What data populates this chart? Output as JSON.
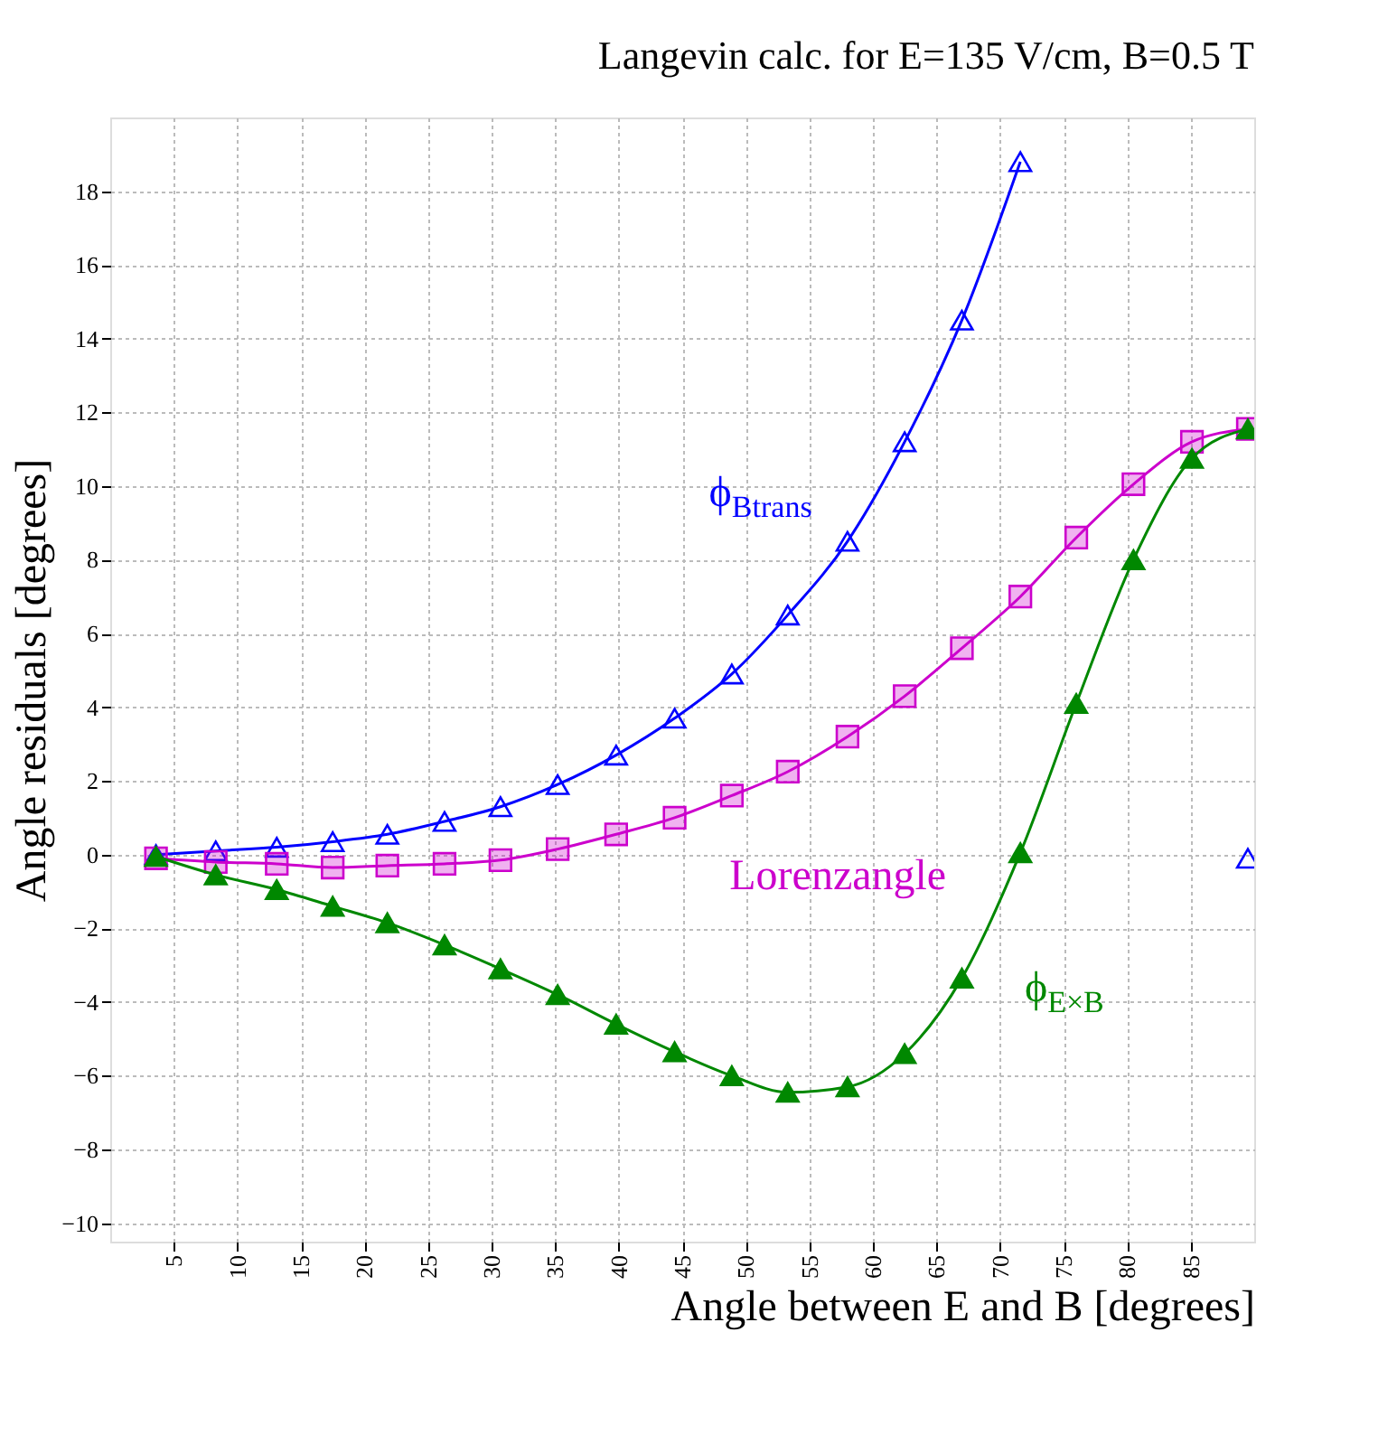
{
  "chart_data": {
    "type": "line",
    "title": "Langevin calc. for E=135 V/cm, B=0.5 T",
    "xlabel": "Angle between E and B [degrees]",
    "ylabel": "Angle residuals [degrees]",
    "x": [
      3.6,
      8.3,
      13.1,
      17.5,
      21.8,
      26.3,
      30.7,
      35.2,
      39.8,
      44.4,
      48.9,
      53.3,
      58.0,
      62.5,
      67.0,
      71.6,
      76.0,
      80.5,
      85.1,
      89.5
    ],
    "series": [
      {
        "name": "ϕ$_{Btrans}$",
        "color": "#0000ff",
        "marker": "triangle",
        "values": [
          0,
          0.1,
          0.2,
          0.35,
          0.55,
          0.9,
          1.3,
          1.9,
          2.7,
          3.7,
          4.9,
          6.5,
          8.5,
          11.2,
          14.5,
          18.8,
          null,
          null,
          null,
          -0.1
        ]
      },
      {
        "name": "Lorenzangle",
        "color": "#cc00cc",
        "marker": "square",
        "values": [
          -0.1,
          -0.2,
          -0.25,
          -0.35,
          -0.3,
          -0.25,
          -0.15,
          0.15,
          0.55,
          1.0,
          1.6,
          2.25,
          3.2,
          4.3,
          5.6,
          7.0,
          8.6,
          10.05,
          11.2,
          11.55
        ]
      },
      {
        "name": "ϕ$_{E×B}$",
        "color": "#008800",
        "marker": "triangle",
        "values": [
          -0.05,
          -0.55,
          -0.95,
          -1.4,
          -1.85,
          -2.45,
          -3.1,
          -3.8,
          -4.6,
          -5.35,
          -6.0,
          -6.45,
          -6.3,
          -5.4,
          -3.35,
          0.05,
          4.1,
          8.0,
          10.75,
          11.55
        ]
      }
    ],
    "xlim": [
      0,
      90
    ],
    "xticks": [
      5,
      10,
      15,
      20,
      25,
      30,
      35,
      40,
      45,
      50,
      55,
      60,
      65,
      70,
      75,
      80,
      85
    ],
    "ylim": [
      -10.5,
      20
    ],
    "yticks": [
      -10,
      -8,
      -6,
      -4,
      -2,
      0,
      2,
      4,
      6,
      8,
      10,
      12,
      14,
      16,
      18
    ],
    "grid": true,
    "line_style": "solid"
  }
}
